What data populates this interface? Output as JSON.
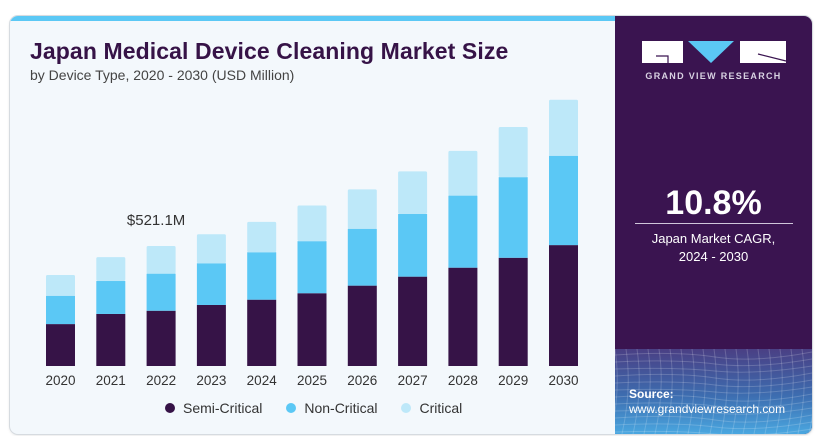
{
  "header": {
    "title": "Japan Medical Device Cleaning Market Size",
    "subtitle": "by Device Type, 2020 - 2030 (USD Million)"
  },
  "annotation": {
    "label": "$521.1M",
    "year": "2022"
  },
  "brand": {
    "name": "GRAND VIEW RESEARCH",
    "colors": {
      "panel": "#3a1450",
      "accent": "#5bc8f5"
    }
  },
  "stat": {
    "value": "10.8%",
    "label_line1": "Japan Market CAGR,",
    "label_line2": "2024 - 2030"
  },
  "source": {
    "label": "Source:",
    "url": "www.grandviewresearch.com"
  },
  "chart_data": {
    "type": "bar",
    "stacked": true,
    "title": "Japan Medical Device Cleaning Market Size",
    "subtitle": "by Device Type, 2020 - 2030 (USD Million)",
    "xlabel": "",
    "ylabel": "",
    "categories": [
      "2020",
      "2021",
      "2022",
      "2023",
      "2024",
      "2025",
      "2026",
      "2027",
      "2028",
      "2029",
      "2030"
    ],
    "series": [
      {
        "name": "Semi-Critical",
        "color": "#361347",
        "values": [
          182,
          226,
          240,
          265,
          288,
          316,
          349,
          388,
          427,
          470,
          525
        ]
      },
      {
        "name": "Non-Critical",
        "color": "#5bc8f5",
        "values": [
          123,
          143,
          161,
          181,
          206,
          226,
          247,
          272,
          313,
          350,
          388
        ]
      },
      {
        "name": "Critical",
        "color": "#bde8f9",
        "values": [
          90,
          104,
          120,
          126,
          132,
          155,
          171,
          185,
          194,
          218,
          243
        ]
      }
    ],
    "ylim": [
      0,
      1200
    ],
    "grid": false,
    "legend": "bottom",
    "annotations": [
      {
        "category": "2022",
        "text": "$521.1M"
      }
    ]
  }
}
